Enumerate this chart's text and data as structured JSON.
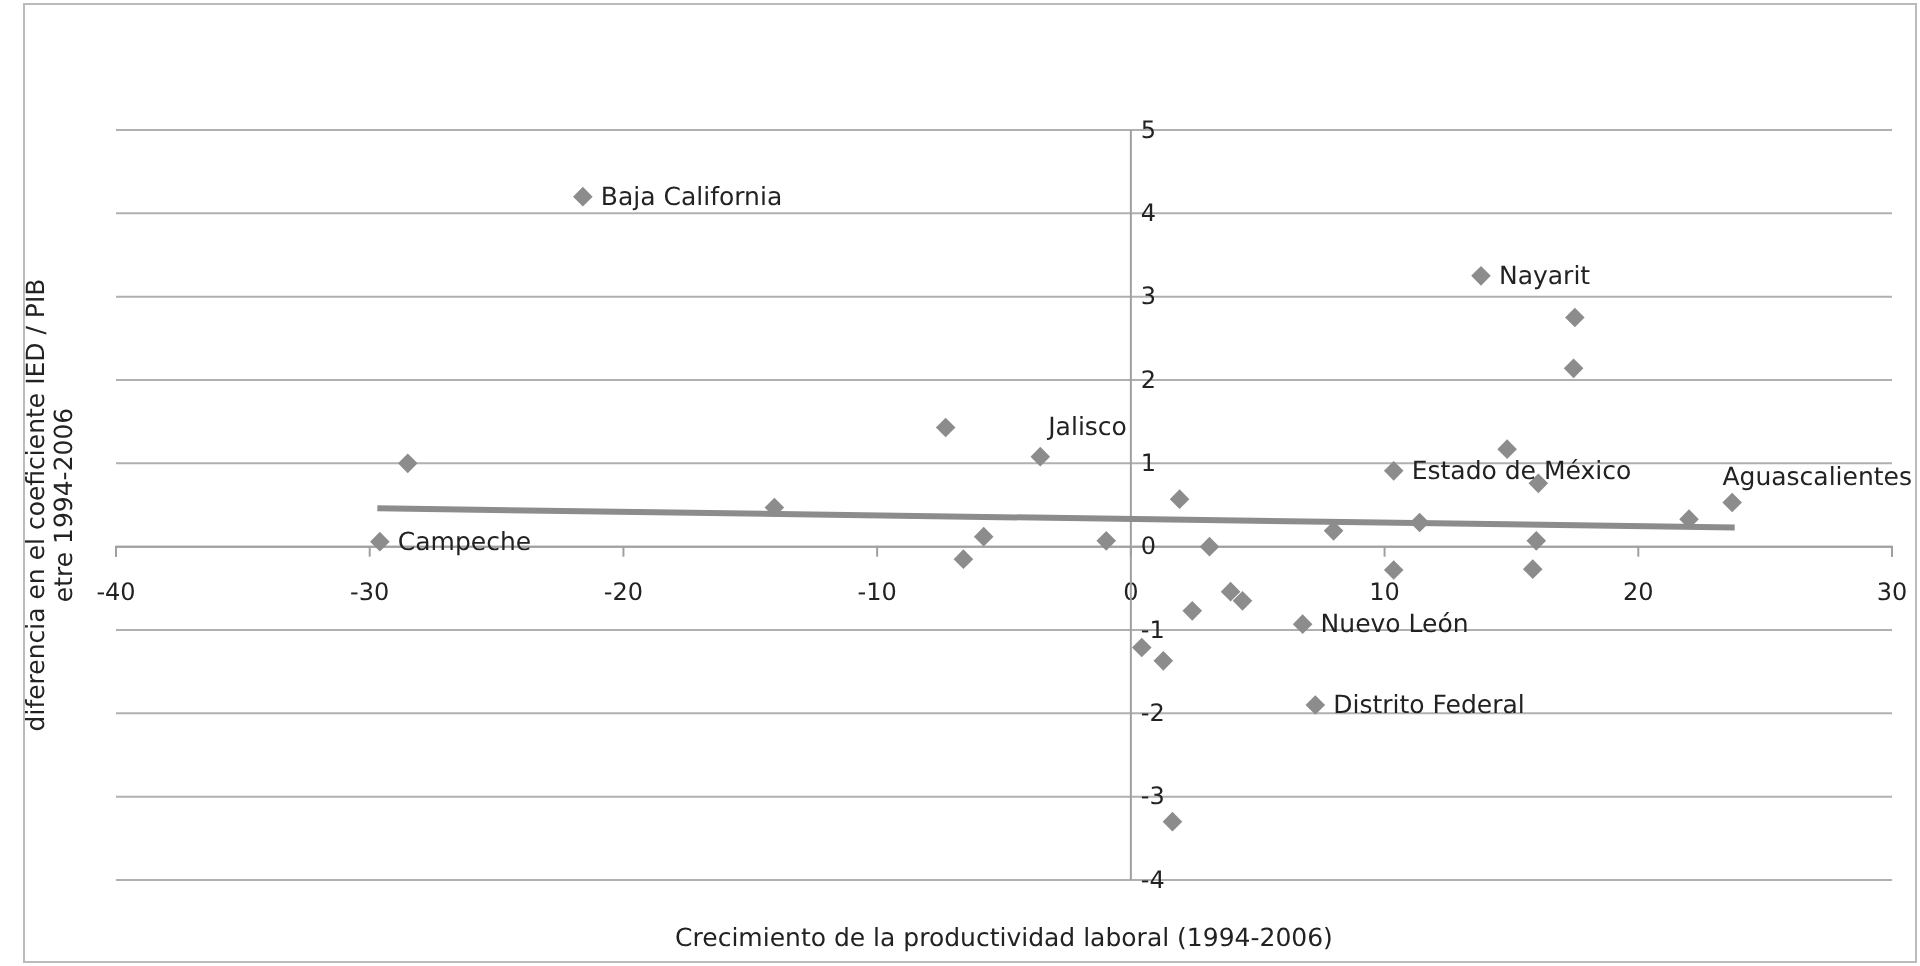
{
  "chart_data": {
    "type": "scatter",
    "xlabel": "Crecimiento de la productividad laboral (1994-2006)",
    "ylabel": "diferencia en el coeficiente IED / PIB\netre 1994-2006",
    "xlim": [
      -40,
      30
    ],
    "xticks": [
      -40,
      -30,
      -20,
      -10,
      0,
      10,
      20,
      30
    ],
    "ylim": [
      -4,
      5
    ],
    "yticks": [
      -4,
      -3,
      -2,
      -1,
      0,
      1,
      2,
      3,
      4,
      5
    ],
    "grid": "y",
    "marker": "diamond",
    "series": [
      {
        "color": "#8c8c8c",
        "x": [
          -21.6,
          -28.5,
          -29.6,
          -14.05,
          -7.3,
          -6.6,
          -5.8,
          -3.57,
          -0.97,
          1.92,
          3.1,
          7.99,
          10.36,
          10.36,
          11.38,
          13.8,
          14.83,
          16.06,
          15.98,
          15.84,
          17.5,
          17.45,
          22.0,
          23.7,
          3.93,
          4.4,
          2.42,
          6.77,
          0.43,
          1.28,
          7.27,
          1.64
        ],
        "values": [
          4.2,
          1.0,
          0.06,
          0.47,
          1.43,
          -0.15,
          0.12,
          1.08,
          0.07,
          0.57,
          0.0,
          0.19,
          0.91,
          -0.28,
          0.29,
          3.25,
          1.17,
          0.76,
          0.07,
          -0.27,
          2.75,
          2.14,
          0.33,
          0.53,
          -0.54,
          -0.65,
          -0.77,
          -0.93,
          -1.21,
          -1.37,
          -1.9,
          -3.3
        ]
      },
      {
        "type": "line",
        "color": "#8c8c8c",
        "marker": "none",
        "x": [
          -29.7,
          23.8
        ],
        "values": [
          0.46,
          0.23
        ]
      }
    ],
    "annotations": [
      {
        "text": "Baja California",
        "x": -21.6,
        "y": 4.2
      },
      {
        "text": "Campeche",
        "x": -29.6,
        "y": 0.06
      },
      {
        "text": "Jalisco",
        "x": -3.57,
        "y": 1.08
      },
      {
        "text": "Nayarit",
        "x": 13.8,
        "y": 3.25
      },
      {
        "text": "Estado de México",
        "x": 10.36,
        "y": 0.91
      },
      {
        "text": "Aguascalientes",
        "x": 23.7,
        "y": 0.53
      },
      {
        "text": "Nuevo León",
        "x": 6.77,
        "y": -0.93
      },
      {
        "text": "Distrito Federal",
        "x": 7.27,
        "y": -1.9
      }
    ]
  }
}
